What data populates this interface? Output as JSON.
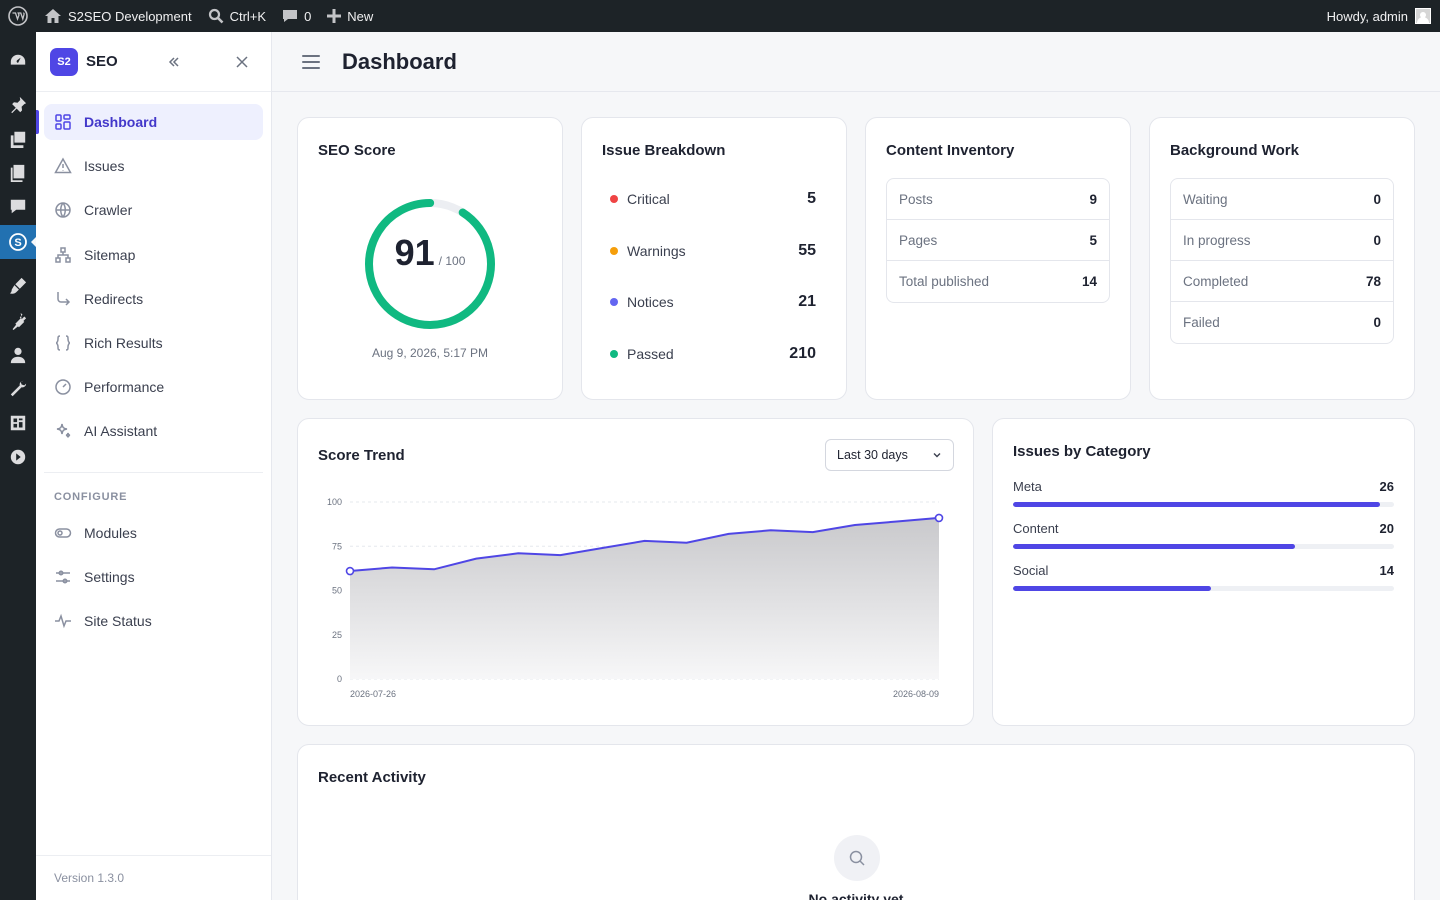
{
  "adminbar": {
    "site_name": "S2SEO Development",
    "search_shortcut": "Ctrl+K",
    "comments_count": "0",
    "new_label": "New",
    "greeting": "Howdy, admin"
  },
  "sidebar": {
    "logo_text": "S2",
    "title": "SEO",
    "items": [
      {
        "label": "Dashboard",
        "icon": "grid-icon"
      },
      {
        "label": "Issues",
        "icon": "warning-triangle-icon"
      },
      {
        "label": "Crawler",
        "icon": "globe-icon"
      },
      {
        "label": "Sitemap",
        "icon": "sitemap-icon"
      },
      {
        "label": "Redirects",
        "icon": "redirect-arrow-icon"
      },
      {
        "label": "Rich Results",
        "icon": "braces-icon"
      },
      {
        "label": "Performance",
        "icon": "gauge-icon"
      },
      {
        "label": "AI Assistant",
        "icon": "sparkle-icon"
      }
    ],
    "section_label": "CONFIGURE",
    "config_items": [
      {
        "label": "Modules",
        "icon": "toggle-icon"
      },
      {
        "label": "Settings",
        "icon": "sliders-icon"
      },
      {
        "label": "Site Status",
        "icon": "pulse-icon"
      }
    ],
    "version": "Version 1.3.0"
  },
  "header": {
    "title": "Dashboard"
  },
  "seo_score": {
    "title": "SEO Score",
    "score": "91",
    "max": "/ 100",
    "score_fraction": 0.91,
    "date": "Aug 9, 2026, 5:17 PM",
    "color": "#10b981"
  },
  "issue_breakdown": {
    "title": "Issue Breakdown",
    "rows": [
      {
        "label": "Critical",
        "value": "5",
        "color": "#ef4444"
      },
      {
        "label": "Warnings",
        "value": "55",
        "color": "#f59e0b"
      },
      {
        "label": "Notices",
        "value": "21",
        "color": "#6366f1"
      },
      {
        "label": "Passed",
        "value": "210",
        "color": "#10b981"
      }
    ]
  },
  "content_inventory": {
    "title": "Content Inventory",
    "rows": [
      {
        "label": "Posts",
        "value": "9"
      },
      {
        "label": "Pages",
        "value": "5"
      },
      {
        "label": "Total published",
        "value": "14"
      }
    ]
  },
  "background_work": {
    "title": "Background Work",
    "rows": [
      {
        "label": "Waiting",
        "value": "0"
      },
      {
        "label": "In progress",
        "value": "0"
      },
      {
        "label": "Completed",
        "value": "78"
      },
      {
        "label": "Failed",
        "value": "0"
      }
    ]
  },
  "score_trend": {
    "title": "Score Trend",
    "range_label": "Last 30 days"
  },
  "chart_data": {
    "type": "area",
    "title": "Score Trend",
    "x_start_label": "2026-07-26",
    "x_end_label": "2026-08-09",
    "y_ticks": [
      "100",
      "75",
      "50",
      "25",
      "0"
    ],
    "ylim": [
      0,
      100
    ],
    "values": [
      61,
      63,
      62,
      68,
      71,
      70,
      74,
      78,
      77,
      82,
      84,
      83,
      87,
      89,
      91
    ],
    "grid": true,
    "line_color": "#4f46e5"
  },
  "issues_by_category": {
    "title": "Issues by Category",
    "max": 27,
    "rows": [
      {
        "label": "Meta",
        "value": 26
      },
      {
        "label": "Content",
        "value": 20
      },
      {
        "label": "Social",
        "value": 14
      }
    ]
  },
  "recent_activity": {
    "title": "Recent Activity",
    "empty_text": "No activity yet"
  }
}
